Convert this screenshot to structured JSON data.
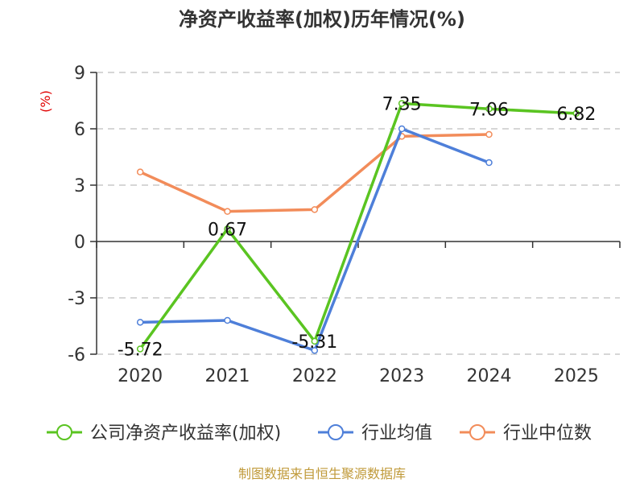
{
  "chart_data": {
    "type": "line",
    "title": "净资产收益率(加权)历年情况(%)",
    "ylabel": "(%)",
    "categories": [
      "2020",
      "2021",
      "2022",
      "2023",
      "2024",
      "2025"
    ],
    "ylim": [
      -6,
      9
    ],
    "yticks": [
      9,
      6,
      3,
      0,
      -3,
      -6
    ],
    "grid": true,
    "legend_position": "bottom",
    "series": [
      {
        "name": "公司净资产收益率(加权)",
        "color": "#5ac421",
        "values": [
          -5.72,
          0.67,
          -5.31,
          7.35,
          7.06,
          6.82
        ],
        "labels": [
          "-5.72",
          "0.67",
          "-5.31",
          "7.35",
          "7.06",
          "6.82"
        ]
      },
      {
        "name": "行业均值",
        "color": "#4e7fd9",
        "values": [
          -4.3,
          -4.2,
          -5.8,
          6.0,
          4.2,
          null
        ]
      },
      {
        "name": "行业中位数",
        "color": "#f28c5a",
        "values": [
          3.7,
          1.6,
          1.7,
          5.6,
          5.7,
          null
        ]
      }
    ]
  },
  "footer": {
    "source": "制图数据来自恒生聚源数据库"
  }
}
